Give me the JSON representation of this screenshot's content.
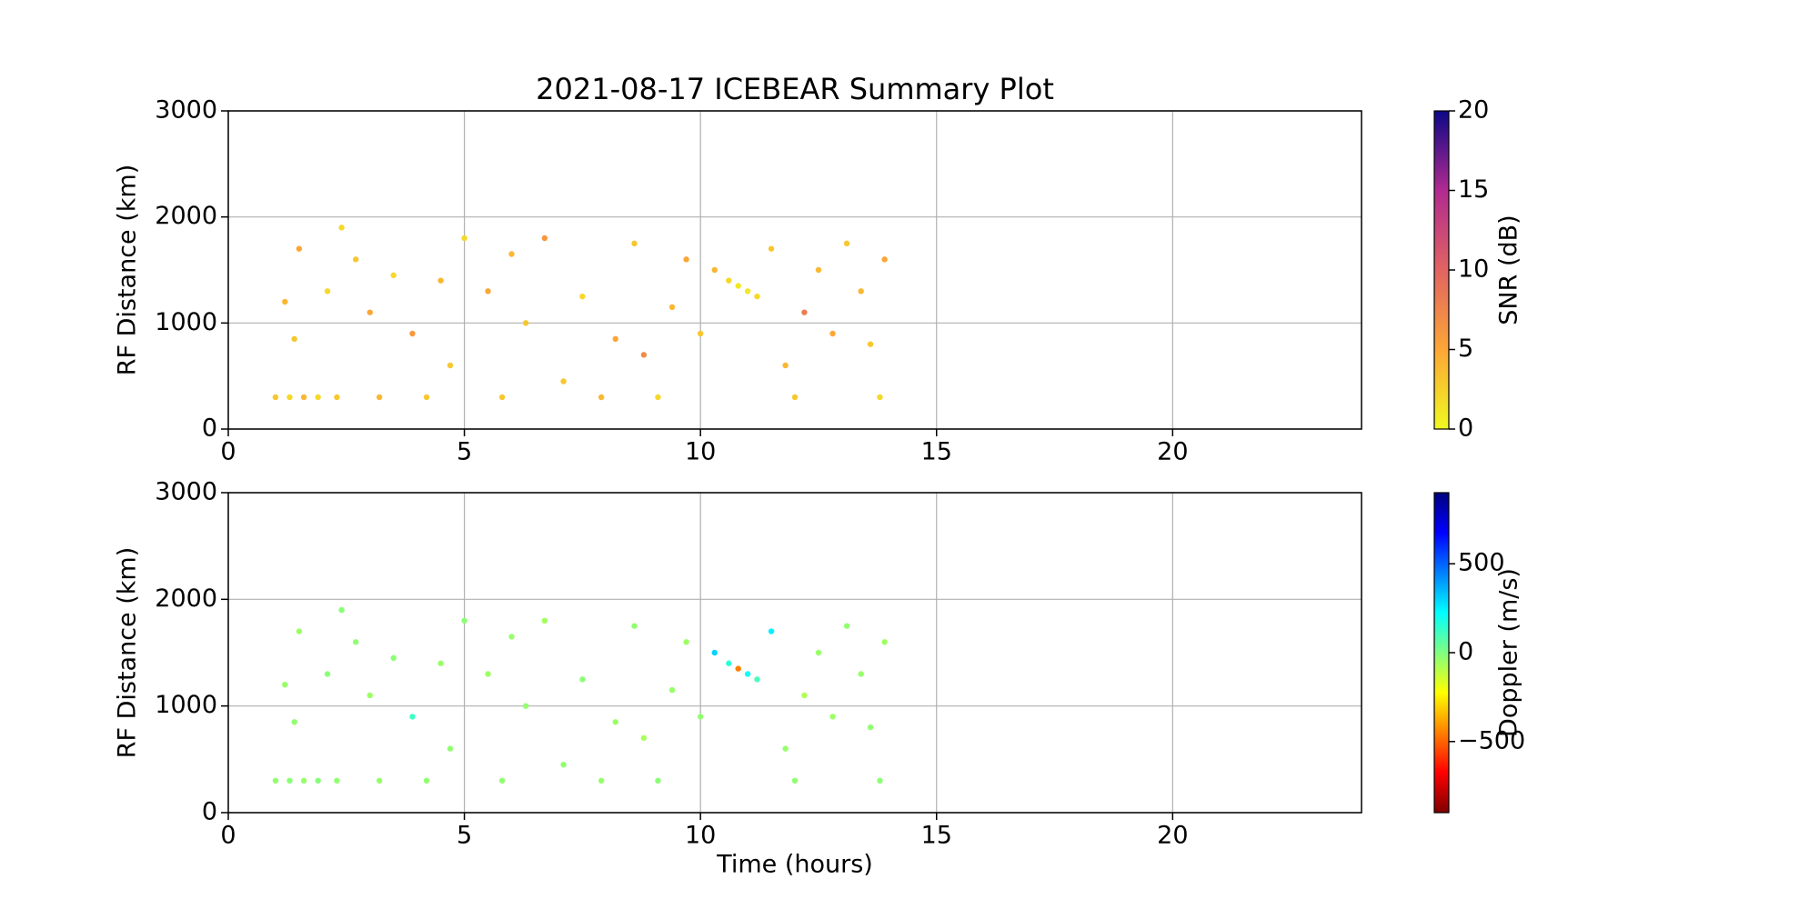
{
  "chart_data": [
    {
      "type": "scatter",
      "title": "2021-08-17 ICEBEAR Summary Plot",
      "ylabel": "RF Distance (km)",
      "x": [
        1.0,
        1.3,
        1.6,
        1.9,
        2.3,
        2.1,
        1.5,
        1.2,
        1.4,
        2.4,
        2.7,
        3.2,
        3.0,
        3.5,
        3.9,
        4.2,
        4.5,
        4.7,
        5.0,
        5.5,
        5.8,
        6.0,
        6.3,
        6.7,
        7.1,
        7.5,
        7.9,
        8.2,
        8.6,
        8.8,
        9.1,
        9.4,
        9.7,
        10.0,
        10.3,
        10.6,
        10.8,
        11.0,
        11.2,
        11.5,
        11.8,
        12.0,
        12.2,
        12.5,
        12.8,
        13.1,
        13.4,
        13.6,
        13.8,
        13.9
      ],
      "y": [
        300,
        300,
        300,
        300,
        300,
        1300,
        1700,
        1200,
        850,
        1900,
        1600,
        300,
        1100,
        1450,
        900,
        300,
        1400,
        600,
        1800,
        1300,
        300,
        1650,
        1000,
        1800,
        450,
        1250,
        300,
        850,
        1750,
        700,
        300,
        1150,
        1600,
        900,
        1500,
        1400,
        1350,
        1300,
        1250,
        1700,
        600,
        300,
        1100,
        1500,
        900,
        1750,
        1300,
        800,
        300,
        1600
      ],
      "c": [
        3,
        2,
        4,
        2,
        3,
        2,
        5,
        4,
        3,
        2,
        3,
        4,
        5,
        2,
        6,
        3,
        4,
        3,
        2,
        5,
        3,
        4,
        3,
        6,
        3,
        2,
        4,
        5,
        3,
        7,
        2,
        4,
        5,
        3,
        4,
        2,
        1,
        1,
        2,
        3,
        4,
        3,
        8,
        4,
        5,
        3,
        4,
        3,
        2,
        5
      ],
      "xlim": [
        0,
        24
      ],
      "xticks": [
        0,
        5,
        10,
        15,
        20
      ],
      "ylim": [
        0,
        3000
      ],
      "yticks": [
        0,
        1000,
        2000,
        3000
      ],
      "grid": true,
      "colorbar": {
        "label": "SNR (dB)",
        "lim": [
          0,
          20
        ],
        "ticks": [
          0,
          5,
          10,
          15,
          20
        ],
        "colormap": [
          "#f0f921",
          "#fca636",
          "#e16462",
          "#b12a90",
          "#0d0887"
        ]
      }
    },
    {
      "type": "scatter",
      "ylabel": "RF Distance (km)",
      "xlabel": "Time (hours)",
      "x": [
        1.0,
        1.3,
        1.6,
        1.9,
        2.3,
        2.1,
        1.5,
        1.2,
        1.4,
        2.4,
        2.7,
        3.2,
        3.0,
        3.5,
        3.9,
        4.2,
        4.5,
        4.7,
        5.0,
        5.5,
        5.8,
        6.0,
        6.3,
        6.7,
        7.1,
        7.5,
        7.9,
        8.2,
        8.6,
        8.8,
        9.1,
        9.4,
        9.7,
        10.0,
        10.3,
        10.6,
        10.8,
        11.0,
        11.2,
        11.5,
        11.8,
        12.0,
        12.2,
        12.5,
        12.8,
        13.1,
        13.4,
        13.6,
        13.8,
        13.9
      ],
      "y": [
        300,
        300,
        300,
        300,
        300,
        1300,
        1700,
        1200,
        850,
        1900,
        1600,
        300,
        1100,
        1450,
        900,
        300,
        1400,
        600,
        1800,
        1300,
        300,
        1650,
        1000,
        1800,
        450,
        1250,
        300,
        850,
        1750,
        700,
        300,
        1150,
        1600,
        900,
        1500,
        1400,
        1350,
        1300,
        1250,
        1700,
        600,
        300,
        1100,
        1500,
        900,
        1750,
        1300,
        800,
        300,
        1600
      ],
      "c": [
        -30,
        -20,
        -40,
        -10,
        -30,
        -20,
        -50,
        -40,
        -30,
        -20,
        -30,
        -40,
        -50,
        -20,
        120,
        -30,
        -40,
        -30,
        -20,
        -50,
        -30,
        -40,
        -30,
        -60,
        -30,
        -20,
        -40,
        -50,
        -30,
        -70,
        -20,
        -40,
        -50,
        -30,
        300,
        150,
        -450,
        200,
        100,
        250,
        -40,
        -30,
        -80,
        -40,
        -50,
        -30,
        -40,
        -30,
        -20,
        -50
      ],
      "xlim": [
        0,
        24
      ],
      "xticks": [
        0,
        5,
        10,
        15,
        20
      ],
      "ylim": [
        0,
        3000
      ],
      "yticks": [
        0,
        1000,
        2000,
        3000
      ],
      "grid": true,
      "colorbar": {
        "label": "Doppler (m/s)",
        "lim": [
          -900,
          900
        ],
        "ticks": [
          {
            "value": -500,
            "label": "−500"
          },
          0,
          500
        ],
        "colormap": [
          "#7f0000",
          "#ff0000",
          "#ff8000",
          "#ffff00",
          "#80ff80",
          "#00ffff",
          "#0080ff",
          "#0000ff",
          "#00007f"
        ]
      }
    }
  ]
}
